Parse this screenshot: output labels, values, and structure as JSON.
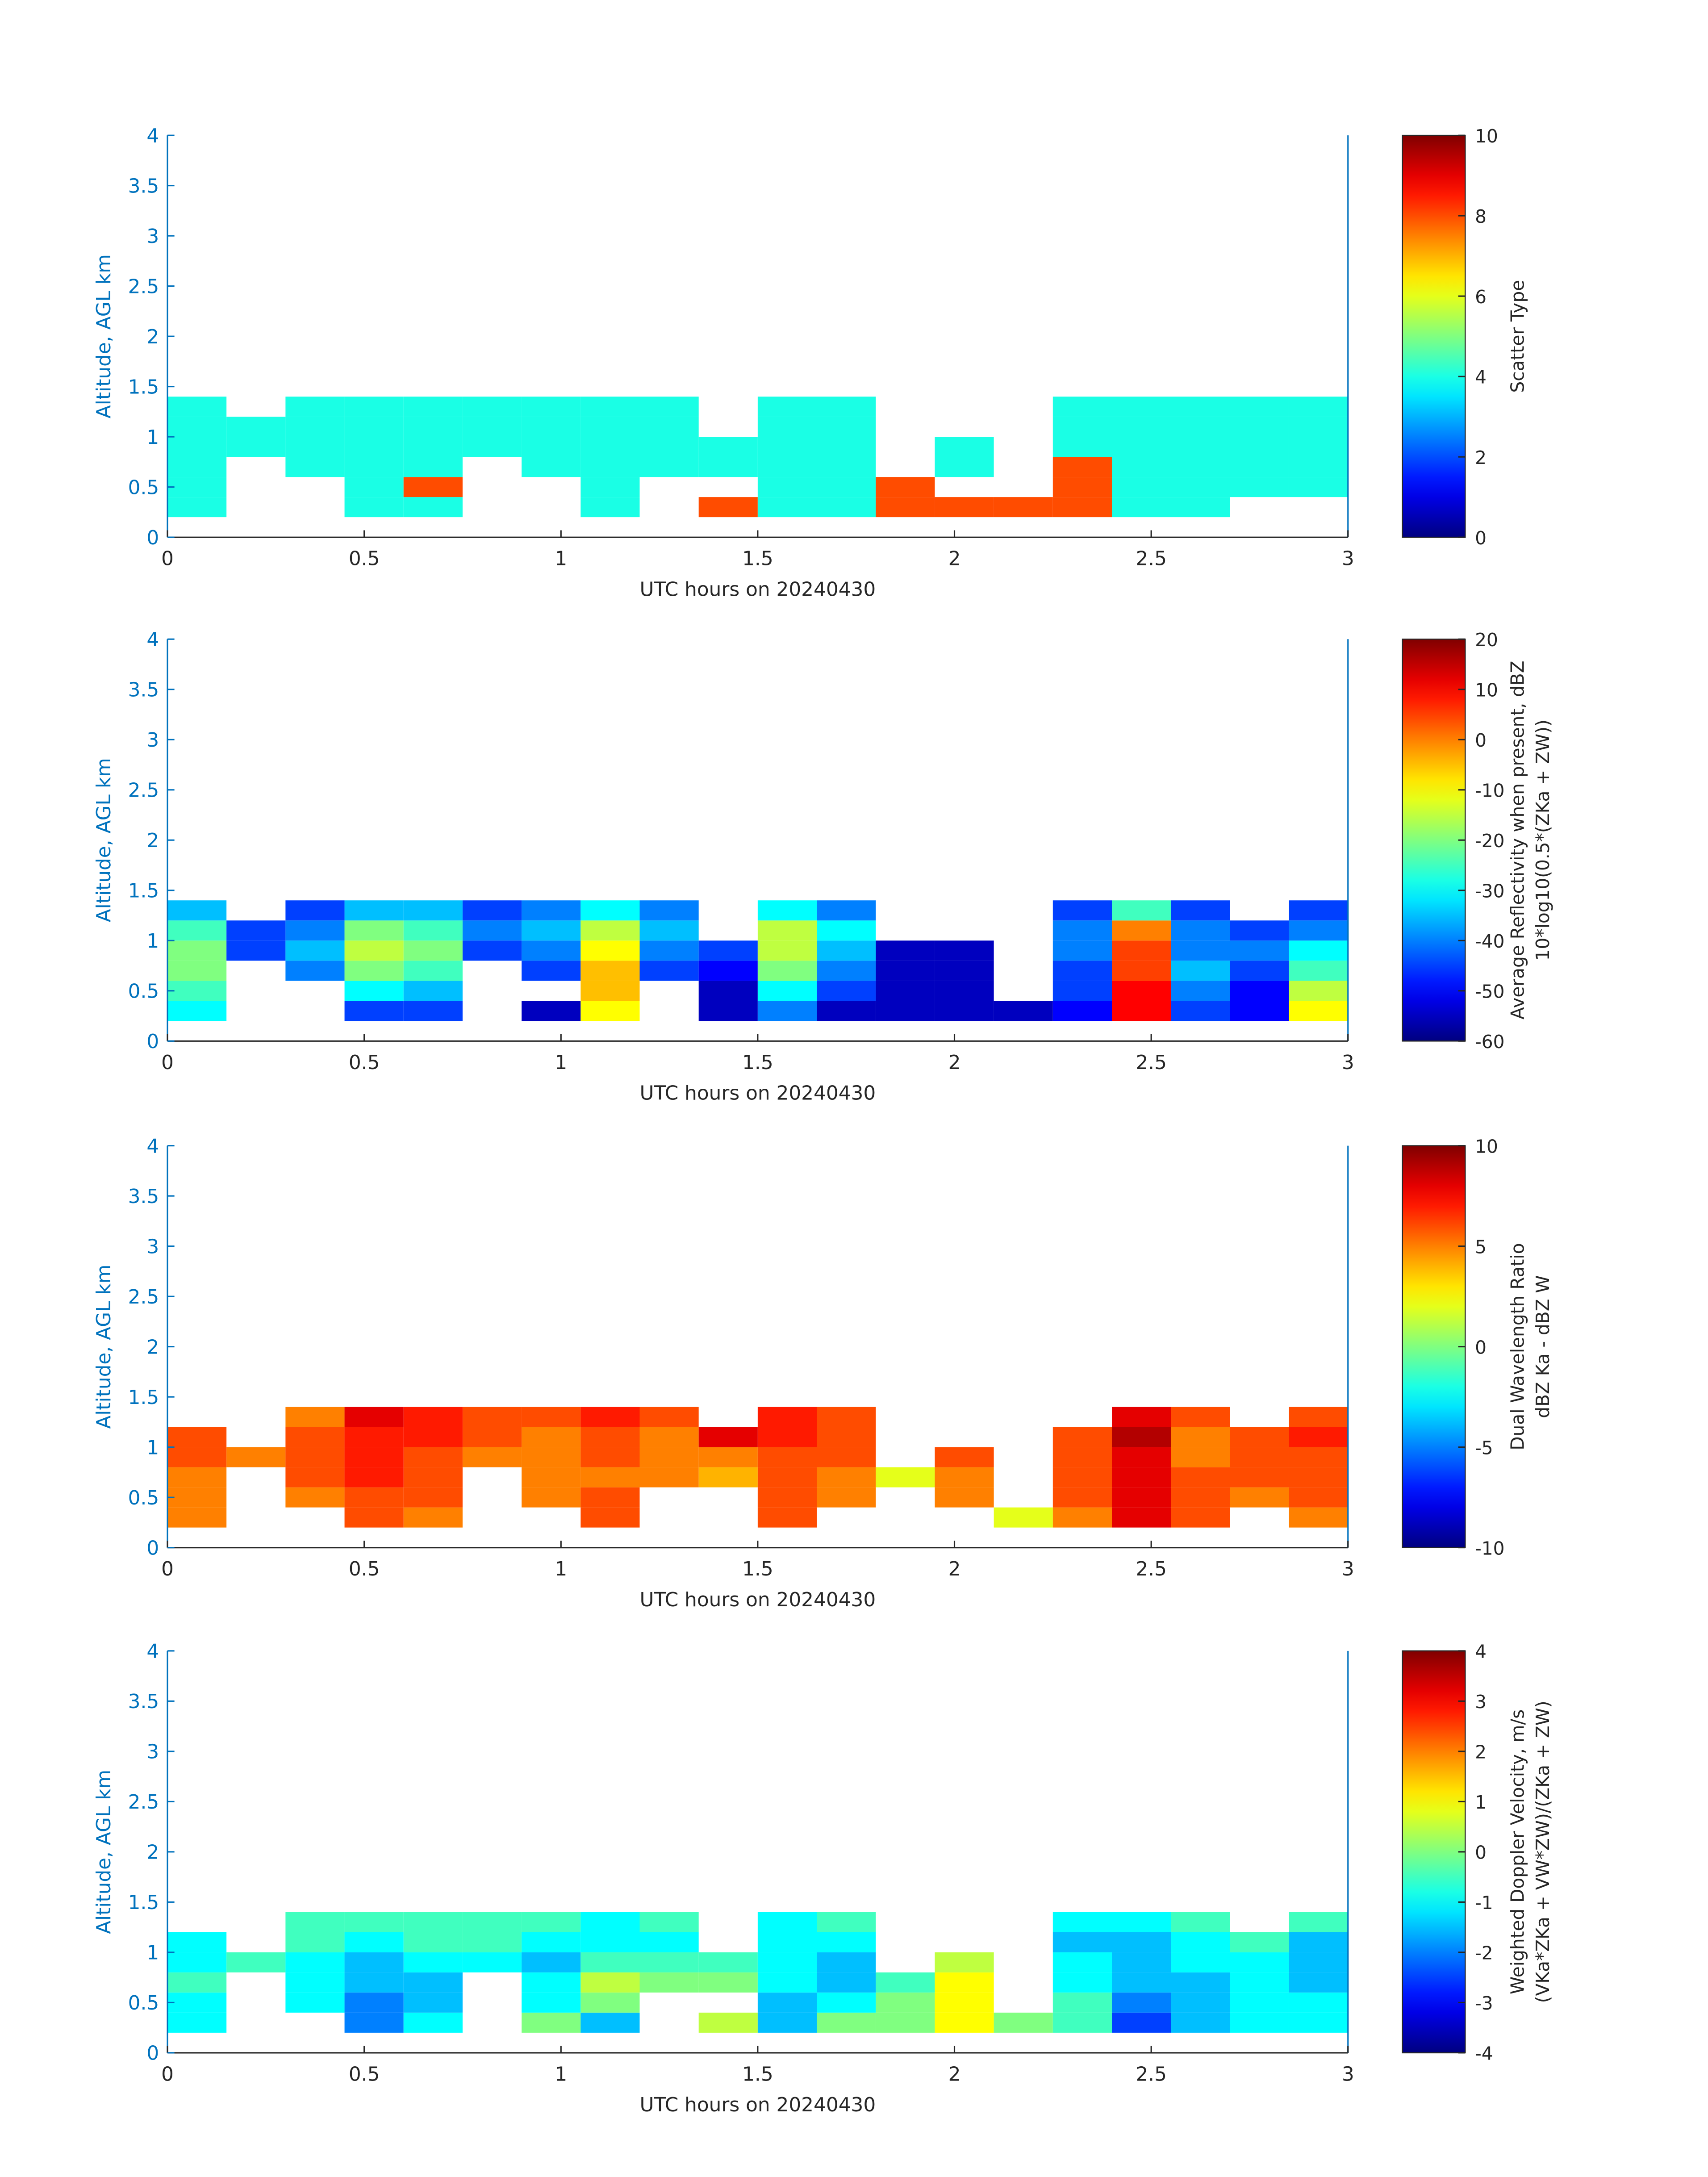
{
  "chart_data": [
    {
      "type": "heatmap",
      "xlabel": "UTC hours on 20240430",
      "ylabel": "Altitude, AGL km",
      "xlim": [
        0,
        3
      ],
      "xticks": [
        0,
        0.5,
        1,
        1.5,
        2,
        2.5,
        3
      ],
      "ylim": [
        0,
        4
      ],
      "yticks": [
        0,
        0.5,
        1,
        1.5,
        2,
        2.5,
        3,
        3.5,
        4
      ],
      "xbins": [
        0,
        0.15,
        0.3,
        0.45,
        0.6,
        0.75,
        0.9,
        1.05,
        1.2,
        1.35,
        1.5,
        1.65,
        1.8,
        1.95,
        2.1,
        2.25,
        2.4,
        2.55,
        2.7,
        2.85,
        3
      ],
      "ybins": [
        0.2,
        0.4,
        0.6,
        0.8,
        1.0,
        1.2,
        1.4
      ],
      "z": [
        [
          4,
          4,
          4,
          4,
          4,
          4
        ],
        [
          null,
          null,
          null,
          4,
          4,
          null
        ],
        [
          null,
          null,
          4,
          4,
          4,
          4
        ],
        [
          4,
          4,
          4,
          4,
          4,
          4
        ],
        [
          4,
          8,
          4,
          4,
          4,
          4
        ],
        [
          null,
          null,
          null,
          4,
          4,
          4
        ],
        [
          null,
          null,
          4,
          4,
          4,
          4
        ],
        [
          4,
          4,
          4,
          4,
          4,
          4
        ],
        [
          null,
          null,
          4,
          4,
          4,
          4
        ],
        [
          8,
          null,
          4,
          4,
          null,
          null
        ],
        [
          4,
          4,
          4,
          4,
          4,
          4
        ],
        [
          4,
          4,
          4,
          4,
          4,
          4
        ],
        [
          8,
          8,
          null,
          null,
          null,
          null
        ],
        [
          8,
          null,
          4,
          4,
          null,
          null
        ],
        [
          8,
          null,
          null,
          null,
          null,
          null
        ],
        [
          8,
          8,
          8,
          4,
          4,
          4
        ],
        [
          4,
          4,
          4,
          4,
          4,
          4
        ],
        [
          4,
          4,
          4,
          4,
          4,
          4
        ],
        [
          null,
          4,
          4,
          4,
          4,
          4
        ],
        [
          null,
          4,
          4,
          4,
          4,
          4
        ]
      ],
      "colorbar": {
        "label": [
          "Scatter Type"
        ],
        "lim": [
          0,
          10
        ],
        "ticks": [
          0,
          2,
          4,
          6,
          8,
          10
        ]
      }
    },
    {
      "type": "heatmap",
      "xlabel": "UTC hours on 20240430",
      "ylabel": "Altitude, AGL km",
      "xlim": [
        0,
        3
      ],
      "xticks": [
        0,
        0.5,
        1,
        1.5,
        2,
        2.5,
        3
      ],
      "ylim": [
        0,
        4
      ],
      "yticks": [
        0,
        0.5,
        1,
        1.5,
        2,
        2.5,
        3,
        3.5,
        4
      ],
      "xbins": [
        0,
        0.15,
        0.3,
        0.45,
        0.6,
        0.75,
        0.9,
        1.05,
        1.2,
        1.35,
        1.5,
        1.65,
        1.8,
        1.95,
        2.1,
        2.25,
        2.4,
        2.55,
        2.7,
        2.85,
        3
      ],
      "ybins": [
        0.2,
        0.4,
        0.6,
        0.8,
        1.0,
        1.2,
        1.4
      ],
      "z": [
        [
          -30,
          -25,
          -20,
          -20,
          -25,
          -35
        ],
        [
          null,
          null,
          null,
          -45,
          -45,
          null
        ],
        [
          null,
          null,
          -40,
          -35,
          -40,
          -45
        ],
        [
          -45,
          -30,
          -20,
          -15,
          -20,
          -35
        ],
        [
          -45,
          -35,
          -25,
          -20,
          -25,
          -35
        ],
        [
          null,
          null,
          null,
          -45,
          -40,
          -45
        ],
        [
          -55,
          null,
          -45,
          -40,
          -35,
          -40
        ],
        [
          -10,
          -5,
          -5,
          -10,
          -15,
          -30
        ],
        [
          null,
          null,
          -45,
          -40,
          -35,
          -40
        ],
        [
          -55,
          -55,
          -50,
          -45,
          null,
          null
        ],
        [
          -40,
          -30,
          -20,
          -15,
          -15,
          -30
        ],
        [
          -55,
          -45,
          -40,
          -35,
          -30,
          -40
        ],
        [
          -55,
          -55,
          -55,
          -55,
          null,
          null
        ],
        [
          -55,
          -55,
          -55,
          -55,
          null,
          null
        ],
        [
          -55,
          null,
          null,
          null,
          null,
          null
        ],
        [
          -50,
          -45,
          -45,
          -40,
          -40,
          -45
        ],
        [
          10,
          10,
          5,
          5,
          0,
          -25
        ],
        [
          -45,
          -40,
          -35,
          -40,
          -40,
          -45
        ],
        [
          -50,
          -50,
          -45,
          -40,
          -45,
          null
        ],
        [
          -10,
          -15,
          -25,
          -30,
          -40,
          -45
        ]
      ],
      "colorbar": {
        "label": [
          "Average Reflectivity when present, dBZ",
          "10*log10(0.5*(ZKa + ZW))"
        ],
        "lim": [
          -60,
          20
        ],
        "ticks": [
          -60,
          -50,
          -40,
          -30,
          -20,
          -10,
          0,
          10,
          20
        ]
      }
    },
    {
      "type": "heatmap",
      "xlabel": "UTC hours on 20240430",
      "ylabel": "Altitude, AGL km",
      "xlim": [
        0,
        3
      ],
      "xticks": [
        0,
        0.5,
        1,
        1.5,
        2,
        2.5,
        3
      ],
      "ylim": [
        0,
        4
      ],
      "yticks": [
        0,
        0.5,
        1,
        1.5,
        2,
        2.5,
        3,
        3.5,
        4
      ],
      "xbins": [
        0,
        0.15,
        0.3,
        0.45,
        0.6,
        0.75,
        0.9,
        1.05,
        1.2,
        1.35,
        1.5,
        1.65,
        1.8,
        1.95,
        2.1,
        2.25,
        2.4,
        2.55,
        2.7,
        2.85,
        3
      ],
      "ybins": [
        0.2,
        0.4,
        0.6,
        0.8,
        1.0,
        1.2,
        1.4
      ],
      "z": [
        [
          5,
          5,
          5,
          6,
          6,
          null
        ],
        [
          null,
          null,
          null,
          5,
          null,
          null
        ],
        [
          null,
          5,
          6,
          6,
          6,
          5
        ],
        [
          6,
          6,
          7,
          7,
          7,
          8
        ],
        [
          5,
          6,
          6,
          6,
          7,
          7
        ],
        [
          null,
          null,
          null,
          5,
          6,
          6
        ],
        [
          null,
          5,
          5,
          5,
          5,
          6
        ],
        [
          6,
          6,
          5,
          6,
          6,
          7
        ],
        [
          null,
          null,
          5,
          5,
          5,
          6
        ],
        [
          null,
          null,
          4,
          5,
          8,
          null
        ],
        [
          6,
          6,
          6,
          6,
          7,
          7
        ],
        [
          null,
          5,
          5,
          6,
          6,
          6
        ],
        [
          null,
          null,
          2,
          null,
          null,
          null
        ],
        [
          null,
          5,
          5,
          6,
          null,
          null
        ],
        [
          2,
          null,
          null,
          null,
          null,
          null
        ],
        [
          5,
          6,
          6,
          6,
          6,
          null
        ],
        [
          8,
          8,
          8,
          8,
          9,
          8
        ],
        [
          6,
          6,
          6,
          5,
          5,
          6
        ],
        [
          null,
          5,
          6,
          6,
          6,
          null
        ],
        [
          5,
          6,
          6,
          6,
          7,
          6
        ]
      ],
      "colorbar": {
        "label": [
          "Dual Wavelength Ratio",
          "dBZ Ka - dBZ W"
        ],
        "lim": [
          -10,
          10
        ],
        "ticks": [
          -10,
          -5,
          0,
          5,
          10
        ]
      }
    },
    {
      "type": "heatmap",
      "xlabel": "UTC hours on 20240430",
      "ylabel": "Altitude, AGL km",
      "xlim": [
        0,
        3
      ],
      "xticks": [
        0,
        0.5,
        1,
        1.5,
        2,
        2.5,
        3
      ],
      "ylim": [
        0,
        4
      ],
      "yticks": [
        0,
        0.5,
        1,
        1.5,
        2,
        2.5,
        3,
        3.5,
        4
      ],
      "xbins": [
        0,
        0.15,
        0.3,
        0.45,
        0.6,
        0.75,
        0.9,
        1.05,
        1.2,
        1.35,
        1.5,
        1.65,
        1.8,
        1.95,
        2.1,
        2.25,
        2.4,
        2.55,
        2.7,
        2.85,
        3
      ],
      "ybins": [
        0.2,
        0.4,
        0.6,
        0.8,
        1.0,
        1.2,
        1.4
      ],
      "z": [
        [
          -1,
          -1,
          -0.5,
          -1,
          -1,
          null
        ],
        [
          null,
          null,
          null,
          -0.5,
          null,
          null
        ],
        [
          null,
          -1,
          -1,
          -1,
          -0.5,
          -0.5
        ],
        [
          -2,
          -2,
          -1.5,
          -1.5,
          -1,
          -0.5
        ],
        [
          -1,
          -1.5,
          -1.5,
          -1,
          -0.5,
          -0.5
        ],
        [
          null,
          null,
          null,
          -1,
          -0.5,
          -0.5
        ],
        [
          0,
          -1,
          -1,
          -1.5,
          -1,
          -0.5
        ],
        [
          -1.5,
          0,
          0.5,
          -0.5,
          -1,
          -1
        ],
        [
          null,
          null,
          0,
          -0.5,
          -1,
          -0.5
        ],
        [
          0.5,
          null,
          0,
          -0.5,
          null,
          null
        ],
        [
          -1.5,
          -1.5,
          -1,
          -1,
          -1,
          -1
        ],
        [
          0,
          -1,
          -1.5,
          -1.5,
          -1,
          -0.5
        ],
        [
          0,
          0,
          -0.5,
          null,
          null,
          null
        ],
        [
          1,
          1,
          1,
          0.5,
          null,
          null
        ],
        [
          0,
          null,
          null,
          null,
          null,
          null
        ],
        [
          -0.5,
          -0.5,
          -1,
          -1,
          -1.5,
          -1
        ],
        [
          -2.5,
          -2,
          -1.5,
          -1.5,
          -1.5,
          -1
        ],
        [
          -1.5,
          -1.5,
          -1.5,
          -1,
          -1,
          -0.5
        ],
        [
          -1,
          -1,
          -1,
          -1,
          -0.5,
          null
        ],
        [
          -1,
          -1,
          -1.5,
          -1.5,
          -1.5,
          -0.5
        ]
      ],
      "colorbar": {
        "label": [
          "Weighted Doppler Velocity, m/s",
          "(VKa*ZKa + VW*ZW)/(ZKa + ZW)"
        ],
        "lim": [
          -4,
          4
        ],
        "ticks": [
          -4,
          -3,
          -2,
          -1,
          0,
          1,
          2,
          3,
          4
        ]
      }
    }
  ]
}
